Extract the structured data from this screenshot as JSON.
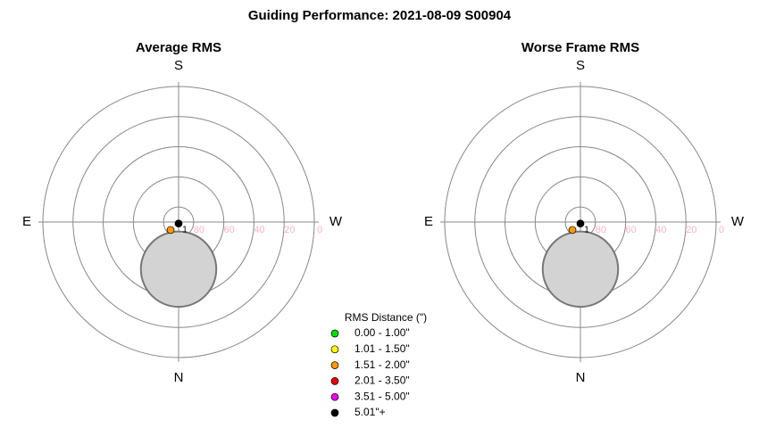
{
  "title": "Guiding Performance: 2021-08-09 S00904",
  "legend": {
    "title": "RMS Distance (\")",
    "items": [
      {
        "label": "0.00 - 1.00\"",
        "color": "#00e000"
      },
      {
        "label": "1.01 - 1.50\"",
        "color": "#ffff00"
      },
      {
        "label": "1.51 - 2.00\"",
        "color": "#ff9900"
      },
      {
        "label": "2.01 - 3.50\"",
        "color": "#ee0000"
      },
      {
        "label": "3.51 - 5.00\"",
        "color": "#ee00ee"
      },
      {
        "label": "5.01\"+",
        "color": "#000000"
      }
    ]
  },
  "chart_data": [
    {
      "type": "polar",
      "title": "Average RMS",
      "directions": {
        "top": "S",
        "bottom": "N",
        "left": "E",
        "right": "W"
      },
      "rlim": [
        90,
        0
      ],
      "rticks": [
        80,
        60,
        40,
        20,
        0
      ],
      "center_label": "1",
      "points": {
        "az": [
          0,
          45
        ],
        "alt": [
          89,
          82.5
        ],
        "colors": [
          "#000000",
          "#ff9900"
        ]
      },
      "zone": {
        "az": 0,
        "alt": 58.7,
        "radius": 25,
        "color": "#d3d3d3"
      }
    },
    {
      "type": "polar",
      "title": "Worse Frame RMS",
      "directions": {
        "top": "S",
        "bottom": "N",
        "left": "E",
        "right": "W"
      },
      "rlim": [
        90,
        0
      ],
      "rticks": [
        80,
        60,
        40,
        20,
        0
      ],
      "center_label": "1",
      "points": {
        "az": [
          0,
          45
        ],
        "alt": [
          89,
          82.5
        ],
        "colors": [
          "#000000",
          "#ff9900"
        ]
      },
      "zone": {
        "az": 0,
        "alt": 58.7,
        "radius": 25,
        "color": "#d3d3d3"
      }
    }
  ]
}
